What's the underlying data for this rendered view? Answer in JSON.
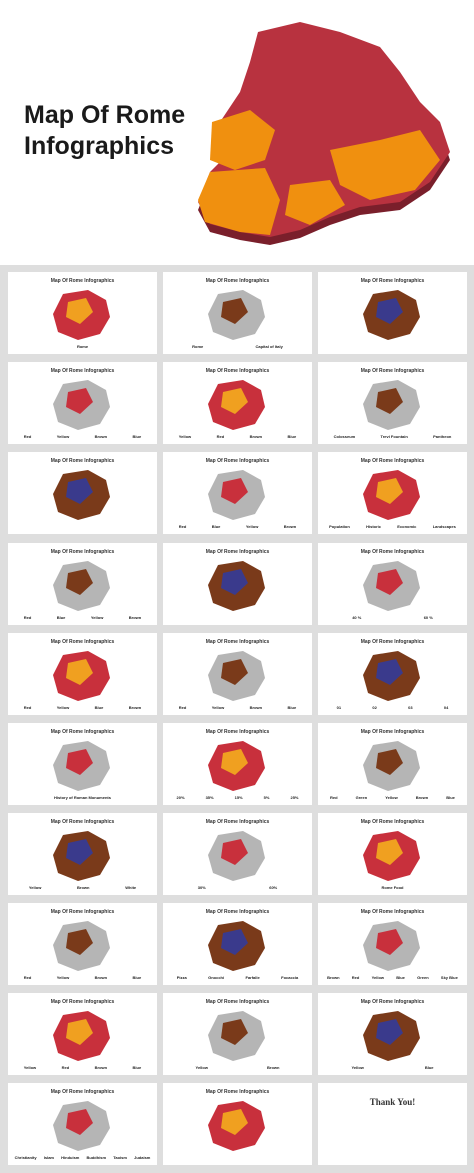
{
  "header": {
    "title": "Map Of Rome Infographics"
  },
  "slides": [
    {
      "title": "Map Of Rome Infographics",
      "labels": [
        "Rome"
      ]
    },
    {
      "title": "Map Of Rome Infographics",
      "labels": [
        "Rome",
        "Capital of Italy"
      ]
    },
    {
      "title": "Map Of Rome Infographics",
      "labels": []
    },
    {
      "title": "Map Of Rome Infographics",
      "labels": [
        "Red",
        "Yellow",
        "Brown",
        "Blue"
      ]
    },
    {
      "title": "Map Of Rome Infographics",
      "labels": [
        "Yellow",
        "Red",
        "Brown",
        "Blue"
      ]
    },
    {
      "title": "Map Of Rome Infographics",
      "labels": [
        "Colosseum",
        "Trevi Fountain",
        "Pantheon"
      ]
    },
    {
      "title": "Map Of Rome Infographics",
      "labels": []
    },
    {
      "title": "Map Of Rome Infographics",
      "labels": [
        "Red",
        "Blue",
        "Yellow",
        "Brown"
      ]
    },
    {
      "title": "Map Of Rome Infographics",
      "labels": [
        "Population",
        "Historic",
        "Economic",
        "Landscapes"
      ]
    },
    {
      "title": "Map Of Rome Infographics",
      "labels": [
        "Red",
        "Blue",
        "Yellow",
        "Brown"
      ]
    },
    {
      "title": "Map Of Rome Infographics",
      "labels": []
    },
    {
      "title": "Map Of Rome Infographics",
      "labels": [
        "40 %",
        "60 %"
      ]
    },
    {
      "title": "Map Of Rome Infographics",
      "labels": [
        "Red",
        "Yellow",
        "Blue",
        "Brown"
      ]
    },
    {
      "title": "Map Of Rome Infographics",
      "labels": [
        "Red",
        "Yellow",
        "Brown",
        "Blue"
      ]
    },
    {
      "title": "Map Of Rome Infographics",
      "labels": [
        "01",
        "02",
        "03",
        "04"
      ]
    },
    {
      "title": "Map Of Rome Infographics",
      "labels": [
        "History of Roman Monuments"
      ]
    },
    {
      "title": "Map Of Rome Infographics",
      "labels": [
        "20%",
        "35%",
        "15%",
        "5%",
        "25%"
      ]
    },
    {
      "title": "Map Of Rome Infographics",
      "labels": [
        "Red",
        "Green",
        "Yellow",
        "Brown",
        "Blue"
      ]
    },
    {
      "title": "Map Of Rome Infographics",
      "labels": [
        "Yellow",
        "Brown",
        "White"
      ]
    },
    {
      "title": "Map Of Rome Infographics",
      "labels": [
        "30%",
        "60%"
      ]
    },
    {
      "title": "Map Of Rome Infographics",
      "labels": [
        "Rome Food"
      ]
    },
    {
      "title": "Map Of Rome Infographics",
      "labels": [
        "Red",
        "Yellow",
        "Brown",
        "Blue"
      ]
    },
    {
      "title": "Map Of Rome Infographics",
      "labels": [
        "Pizza",
        "Gnocchi",
        "Farfalle",
        "Focaccia"
      ]
    },
    {
      "title": "Map Of Rome Infographics",
      "labels": [
        "Brown",
        "Red",
        "Yellow",
        "Blue",
        "Green",
        "Sky Blue"
      ]
    },
    {
      "title": "Map Of Rome Infographics",
      "labels": [
        "Yellow",
        "Red",
        "Brown",
        "Blue"
      ]
    },
    {
      "title": "Map Of Rome Infographics",
      "labels": [
        "Yellow",
        "Brown"
      ]
    },
    {
      "title": "Map Of Rome Infographics",
      "labels": [
        "Yellow",
        "Blue"
      ]
    },
    {
      "title": "Map Of Rome Infographics",
      "labels": [
        "Christianity",
        "Islam",
        "Hinduism",
        "Buddhism",
        "Taoism",
        "Judaism"
      ]
    },
    {
      "title": "Map Of Rome Infographics",
      "labels": []
    },
    {
      "title": "Thank You!",
      "labels": []
    }
  ]
}
